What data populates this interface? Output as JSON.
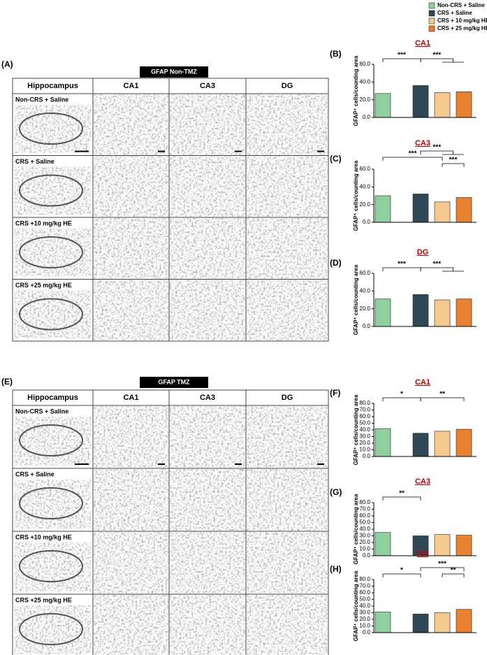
{
  "legend": [
    {
      "name": "Non-CRS + Saline",
      "color": "#8fd19e"
    },
    {
      "name": "CRS + Saline",
      "color": "#2f4858"
    },
    {
      "name": "CRS + 10 mg/kg HE",
      "color": "#f5c98f"
    },
    {
      "name": "CRS + 25 mg/kg HE",
      "color": "#e8822e"
    }
  ],
  "figures": [
    {
      "panel": "(A)",
      "title": "GFAP Non-TMZ",
      "columns": [
        "Hippocampus",
        "CA1",
        "CA3",
        "DG"
      ],
      "rows": [
        "Non-CRS + Saline",
        "CRS + Saline",
        "CRS +10 mg/kg HE",
        "CRS +25 mg/kg HE"
      ]
    },
    {
      "panel": "(E)",
      "title": "GFAP TMZ",
      "columns": [
        "Hippocampus",
        "CA1",
        "CA3",
        "DG"
      ],
      "rows": [
        "Non-CRS + Saline",
        "CRS + Saline",
        "CRS +10 mg/kg HE",
        "CRS +25 mg/kg HE"
      ]
    }
  ],
  "chart_data": [
    {
      "type": "bar",
      "panel": "(B)",
      "title": "CA1",
      "y_label": "GFAP⁺ cells/counting area",
      "categories": [
        null,
        null,
        null,
        null
      ],
      "values": [
        27,
        36,
        28,
        29
      ],
      "ylim": [
        0,
        60
      ],
      "yticks": [
        {
          "value": 0,
          "label": "0.0"
        },
        {
          "value": 20,
          "label": "20.0"
        },
        {
          "value": 40,
          "label": "40.0"
        },
        {
          "value": 60,
          "label": "60.0"
        }
      ],
      "annotations": [
        "***",
        "***"
      ]
    },
    {
      "type": "bar",
      "panel": "(C)",
      "title": "CA3",
      "y_label": "GFAP⁺ cells/counting area",
      "categories": [
        null,
        null,
        null,
        null
      ],
      "values": [
        30,
        32,
        23,
        28
      ],
      "ylim": [
        0,
        60
      ],
      "yticks": [
        {
          "value": 0,
          "label": "0.0"
        },
        {
          "value": 20,
          "label": "20.0"
        },
        {
          "value": 40,
          "label": "40.0"
        },
        {
          "value": 60,
          "label": "60.0"
        }
      ],
      "annotations": [
        "***",
        "***",
        "***"
      ]
    },
    {
      "type": "bar",
      "panel": "(D)",
      "title": "DG",
      "y_label": "GFAP⁺ cells/counting area",
      "categories": [
        null,
        null,
        null,
        null
      ],
      "values": [
        31,
        36,
        30,
        31
      ],
      "ylim": [
        0,
        60
      ],
      "yticks": [
        {
          "value": 0,
          "label": "0.0"
        },
        {
          "value": 20,
          "label": "20.0"
        },
        {
          "value": 40,
          "label": "40.0"
        },
        {
          "value": 60,
          "label": "60.0"
        }
      ],
      "annotations": [
        "***",
        "***"
      ]
    },
    {
      "type": "bar",
      "panel": "(F)",
      "title": "CA1",
      "y_label": "GFAP⁺ cells/counting area",
      "categories": [
        null,
        null,
        null,
        null
      ],
      "values": [
        42,
        35,
        38,
        41
      ],
      "ylim": [
        0,
        80
      ],
      "yticks": [
        {
          "value": 0,
          "label": "0.0"
        },
        {
          "value": 10,
          "label": "10.0"
        },
        {
          "value": 20,
          "label": "20.0"
        },
        {
          "value": 30,
          "label": "30.0"
        },
        {
          "value": 40,
          "label": "40.0"
        },
        {
          "value": 50,
          "label": "50.0"
        },
        {
          "value": 60,
          "label": "60.0"
        },
        {
          "value": 70,
          "label": "70.0"
        },
        {
          "value": 80,
          "label": "80.0"
        }
      ],
      "annotations": [
        "*",
        "**"
      ]
    },
    {
      "type": "bar",
      "panel": "(G)",
      "title": "CA3",
      "y_label": "GFAP⁺ cells/counting area",
      "categories": [
        null,
        null,
        null,
        null
      ],
      "values": [
        35,
        30,
        32,
        31
      ],
      "ylim": [
        0,
        80
      ],
      "yticks": [
        {
          "value": 0,
          "label": "0.0"
        },
        {
          "value": 10,
          "label": "10.0"
        },
        {
          "value": 20,
          "label": "20.0"
        },
        {
          "value": 30,
          "label": "30.0"
        },
        {
          "value": 40,
          "label": "40.0"
        },
        {
          "value": 50,
          "label": "50.0"
        },
        {
          "value": 60,
          "label": "60.0"
        },
        {
          "value": 70,
          "label": "70.0"
        },
        {
          "value": 80,
          "label": "80.0"
        }
      ],
      "annotations": [
        "**"
      ]
    },
    {
      "type": "bar",
      "panel": "(H)",
      "title": "DG",
      "y_label": "GFAP⁺ cells/counting area",
      "categories": [
        null,
        null,
        null,
        null
      ],
      "values": [
        31,
        28,
        30,
        35
      ],
      "ylim": [
        0,
        80
      ],
      "yticks": [
        {
          "value": 0,
          "label": "0.0"
        },
        {
          "value": 10,
          "label": "10.0"
        },
        {
          "value": 20,
          "label": "20.0"
        },
        {
          "value": 30,
          "label": "30.0"
        },
        {
          "value": 40,
          "label": "40.0"
        },
        {
          "value": 50,
          "label": "50.0"
        },
        {
          "value": 60,
          "label": "60.0"
        },
        {
          "value": 70,
          "label": "70.0"
        },
        {
          "value": 80,
          "label": "80.0"
        }
      ],
      "annotations": [
        "*",
        "***",
        "**"
      ]
    }
  ]
}
